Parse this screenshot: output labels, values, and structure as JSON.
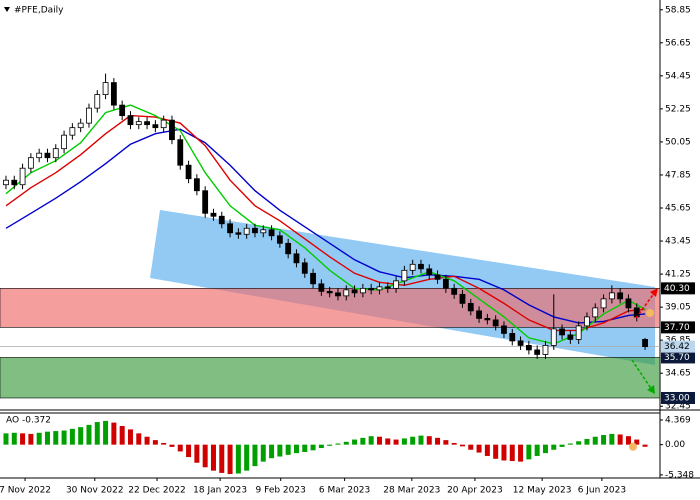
{
  "chart_data": {
    "type": "candlestick",
    "title": "#PFE,Daily",
    "xlim": [
      -0.72,
      78.8
    ],
    "xticks": [
      {
        "value": 2.3,
        "label": "7 Nov 2022"
      },
      {
        "value": 10.7,
        "label": "30 Nov 2022"
      },
      {
        "value": 18.2,
        "label": "22 Dec 2022"
      },
      {
        "value": 25.8,
        "label": "18 Jan 2023"
      },
      {
        "value": 33.1,
        "label": "9 Feb 2023"
      },
      {
        "value": 40.8,
        "label": "6 Mar 2023"
      },
      {
        "value": 48.9,
        "label": "28 Mar 2023"
      },
      {
        "value": 56.5,
        "label": "20 Apr 2023"
      },
      {
        "value": 64.6,
        "label": "12 May 2023"
      },
      {
        "value": 71.8,
        "label": "6 Jun 2023"
      }
    ],
    "ylim": [
      32.2,
      59.5
    ],
    "yticks": [
      58.85,
      56.65,
      54.45,
      52.25,
      50.05,
      47.85,
      45.65,
      43.45,
      41.25,
      39.05,
      36.85,
      34.65,
      32.45
    ],
    "up_color": "#ffffff",
    "down_color": "#000000",
    "candles": [
      [
        47.2,
        47.8,
        46.9,
        47.5
      ],
      [
        47.5,
        47.8,
        46.9,
        47.2
      ],
      [
        47.2,
        48.6,
        46.9,
        48.3
      ],
      [
        48.3,
        49.3,
        48.0,
        49.0
      ],
      [
        49.0,
        49.6,
        48.7,
        49.3
      ],
      [
        49.3,
        49.6,
        48.7,
        49.0
      ],
      [
        49.0,
        49.9,
        48.7,
        49.6
      ],
      [
        49.6,
        50.8,
        49.3,
        50.5
      ],
      [
        50.5,
        51.3,
        50.2,
        51.0
      ],
      [
        51.0,
        51.6,
        50.7,
        51.3
      ],
      [
        51.3,
        52.6,
        51.0,
        52.3
      ],
      [
        52.3,
        53.5,
        52.0,
        53.2
      ],
      [
        53.2,
        54.6,
        52.9,
        54.0
      ],
      [
        54.0,
        54.3,
        52.2,
        52.5
      ],
      [
        52.5,
        52.8,
        51.5,
        51.8
      ],
      [
        51.8,
        52.1,
        50.9,
        51.2
      ],
      [
        51.2,
        51.7,
        50.9,
        51.4
      ],
      [
        51.4,
        51.7,
        50.9,
        51.2
      ],
      [
        51.2,
        51.5,
        50.7,
        51.0
      ],
      [
        51.0,
        51.8,
        50.7,
        51.5
      ],
      [
        51.5,
        51.8,
        49.9,
        50.2
      ],
      [
        50.2,
        50.5,
        48.2,
        48.5
      ],
      [
        48.5,
        48.8,
        47.3,
        47.6
      ],
      [
        47.6,
        47.9,
        46.5,
        46.8
      ],
      [
        46.8,
        47.1,
        45.0,
        45.3
      ],
      [
        45.3,
        45.6,
        44.8,
        45.1
      ],
      [
        45.1,
        45.4,
        44.3,
        44.6
      ],
      [
        44.6,
        44.9,
        43.7,
        44.0
      ],
      [
        44.0,
        44.3,
        43.6,
        43.9
      ],
      [
        43.9,
        44.6,
        43.6,
        44.3
      ],
      [
        44.3,
        44.6,
        43.7,
        44.0
      ],
      [
        44.0,
        44.5,
        43.7,
        44.2
      ],
      [
        44.2,
        44.5,
        43.5,
        43.8
      ],
      [
        43.8,
        44.1,
        43.0,
        43.3
      ],
      [
        43.3,
        43.6,
        42.3,
        42.6
      ],
      [
        42.6,
        42.9,
        41.7,
        42.0
      ],
      [
        42.0,
        42.3,
        41.0,
        41.3
      ],
      [
        41.3,
        41.6,
        40.3,
        40.6
      ],
      [
        40.6,
        40.9,
        39.8,
        40.1
      ],
      [
        40.1,
        40.4,
        39.7,
        40.0
      ],
      [
        40.0,
        40.3,
        39.5,
        39.8
      ],
      [
        39.8,
        40.5,
        39.5,
        40.2
      ],
      [
        40.2,
        40.5,
        39.7,
        40.0
      ],
      [
        40.0,
        40.6,
        39.7,
        40.3
      ],
      [
        40.3,
        40.6,
        39.9,
        40.2
      ],
      [
        40.2,
        40.7,
        39.9,
        40.4
      ],
      [
        40.4,
        40.7,
        40.0,
        40.3
      ],
      [
        40.3,
        41.1,
        40.0,
        40.8
      ],
      [
        40.8,
        41.8,
        40.5,
        41.5
      ],
      [
        41.5,
        42.2,
        41.2,
        41.9
      ],
      [
        41.9,
        42.2,
        41.3,
        41.6
      ],
      [
        41.6,
        41.9,
        40.9,
        41.2
      ],
      [
        41.2,
        41.5,
        40.6,
        40.9
      ],
      [
        40.9,
        41.2,
        40.0,
        40.3
      ],
      [
        40.3,
        40.6,
        39.6,
        39.9
      ],
      [
        39.9,
        40.2,
        39.0,
        39.3
      ],
      [
        39.3,
        39.6,
        38.5,
        38.8
      ],
      [
        38.8,
        39.1,
        38.0,
        38.3
      ],
      [
        38.3,
        38.6,
        37.9,
        38.2
      ],
      [
        38.2,
        38.5,
        37.5,
        37.8
      ],
      [
        37.8,
        38.1,
        37.0,
        37.3
      ],
      [
        37.3,
        37.6,
        36.5,
        36.8
      ],
      [
        36.8,
        37.1,
        36.2,
        36.5
      ],
      [
        36.5,
        36.8,
        35.9,
        36.2
      ],
      [
        36.2,
        36.5,
        35.6,
        35.9
      ],
      [
        35.9,
        36.8,
        35.6,
        36.5
      ],
      [
        36.5,
        39.9,
        36.2,
        37.6
      ],
      [
        37.6,
        37.9,
        36.9,
        37.2
      ],
      [
        37.2,
        37.5,
        36.6,
        36.9
      ],
      [
        36.9,
        38.1,
        36.6,
        37.8
      ],
      [
        37.8,
        38.7,
        37.5,
        38.4
      ],
      [
        38.4,
        39.3,
        38.1,
        39.0
      ],
      [
        39.0,
        39.9,
        38.7,
        39.6
      ],
      [
        39.6,
        40.5,
        39.3,
        40.0
      ],
      [
        40.0,
        40.3,
        39.3,
        39.6
      ],
      [
        39.6,
        39.9,
        38.7,
        39.0
      ],
      [
        39.0,
        39.3,
        38.1,
        38.4
      ],
      [
        36.9,
        37.0,
        36.2,
        36.42
      ]
    ],
    "ma_x": [
      0,
      3,
      6,
      9,
      12,
      15,
      18,
      21,
      24,
      27,
      30,
      33,
      36,
      39,
      42,
      45,
      48,
      51,
      54,
      57,
      60,
      63,
      66,
      69,
      72,
      75,
      77
    ],
    "series": [
      {
        "color": "#0000cc",
        "values": [
          44.3,
          45.3,
          46.3,
          47.4,
          48.6,
          49.9,
          50.6,
          50.9,
          50.0,
          48.5,
          46.8,
          45.5,
          44.4,
          43.3,
          42.2,
          41.4,
          41.0,
          41.2,
          41.1,
          40.9,
          40.2,
          39.2,
          38.4,
          38.0,
          38.1,
          38.5,
          38.6
        ]
      },
      {
        "color": "#dd0000",
        "values": [
          45.8,
          47.0,
          48.0,
          49.2,
          50.6,
          51.8,
          51.7,
          51.3,
          49.8,
          47.5,
          45.8,
          44.8,
          43.6,
          42.4,
          41.3,
          40.7,
          40.5,
          40.9,
          41.1,
          40.3,
          39.3,
          38.2,
          37.5,
          37.5,
          38.0,
          38.8,
          38.9
        ]
      },
      {
        "color": "#00cc00",
        "values": [
          46.6,
          48.0,
          48.8,
          50.0,
          52.0,
          52.5,
          51.8,
          50.8,
          48.0,
          45.8,
          44.5,
          44.2,
          43.0,
          41.5,
          40.3,
          40.2,
          40.8,
          41.4,
          40.8,
          39.6,
          38.4,
          37.0,
          36.6,
          37.3,
          38.6,
          39.5,
          38.9
        ]
      }
    ],
    "zones": [
      {
        "from": {
          "value": 40.3,
          "label": "40.30"
        },
        "to": {
          "value": 37.7,
          "label": "37.70"
        },
        "color": "#f06a6a",
        "label_color": "#000000"
      },
      {
        "from": {
          "value": 35.7,
          "label": "35.70"
        },
        "to": {
          "value": 33.0,
          "label": "33.00"
        },
        "color": "#3e9b3e",
        "label_color": "#0b1a3a"
      }
    ],
    "current": 36.42,
    "ao": {
      "label": "AO",
      "ylim": [
        -5.9,
        5.6
      ],
      "yticks": [
        4.369,
        {
          "value": 0,
          "label": "0.00"
        },
        -5.348
      ],
      "up_color": "#00a000",
      "down_color": "#d00000",
      "values": [
        2.0,
        2.1,
        2.0,
        1.9,
        2.1,
        2.3,
        2.4,
        2.5,
        2.8,
        3.1,
        3.5,
        4.0,
        4.2,
        3.9,
        3.3,
        2.7,
        2.0,
        1.4,
        0.8,
        0.3,
        -0.4,
        -1.2,
        -2.2,
        -3.2,
        -4.0,
        -4.6,
        -5.0,
        -5.2,
        -5.1,
        -4.6,
        -3.8,
        -3.0,
        -2.4,
        -2.1,
        -1.8,
        -1.5,
        -1.3,
        -1.0,
        -0.6,
        -0.2,
        0.2,
        0.5,
        0.9,
        1.2,
        1.5,
        1.4,
        1.1,
        0.9,
        1.1,
        1.4,
        1.6,
        1.5,
        1.2,
        0.8,
        0.3,
        -0.3,
        -0.9,
        -1.4,
        -2.0,
        -2.5,
        -2.8,
        -2.9,
        -3.0,
        -2.6,
        -2.0,
        -1.5,
        -0.9,
        -0.4,
        0.2,
        0.6,
        1.0,
        1.4,
        1.7,
        1.9,
        1.8,
        1.5,
        0.9,
        -0.372
      ]
    }
  }
}
